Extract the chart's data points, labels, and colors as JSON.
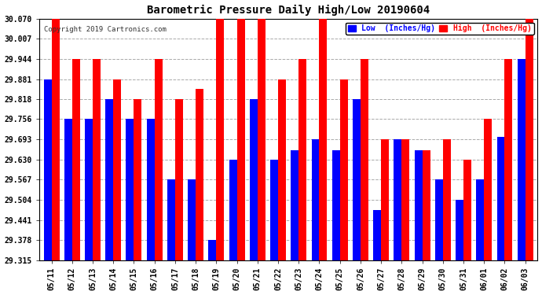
{
  "title": "Barometric Pressure Daily High/Low 20190604",
  "copyright": "Copyright 2019 Cartronics.com",
  "background_color": "#ffffff",
  "bar_color_low": "#0000ff",
  "bar_color_high": "#ff0000",
  "legend_low": "Low  (Inches/Hg)",
  "legend_high": "High  (Inches/Hg)",
  "yticks": [
    29.315,
    29.378,
    29.441,
    29.504,
    29.567,
    29.63,
    29.693,
    29.756,
    29.818,
    29.881,
    29.944,
    30.007,
    30.07
  ],
  "ymin": 29.315,
  "ymax": 30.07,
  "dates": [
    "05/11",
    "05/12",
    "05/13",
    "05/14",
    "05/15",
    "05/16",
    "05/17",
    "05/18",
    "05/19",
    "05/20",
    "05/21",
    "05/22",
    "05/23",
    "05/24",
    "05/25",
    "05/26",
    "05/27",
    "05/28",
    "05/29",
    "05/30",
    "05/31",
    "06/01",
    "06/02",
    "06/03"
  ],
  "lows": [
    29.881,
    29.756,
    29.756,
    29.818,
    29.756,
    29.756,
    29.567,
    29.567,
    29.378,
    29.63,
    29.818,
    29.63,
    29.66,
    29.693,
    29.66,
    29.818,
    29.473,
    29.693,
    29.66,
    29.567,
    29.504,
    29.567,
    29.7,
    29.944
  ],
  "highs": [
    30.07,
    29.944,
    29.944,
    29.881,
    29.818,
    29.944,
    29.818,
    29.85,
    30.07,
    30.07,
    30.07,
    29.881,
    29.944,
    30.07,
    29.881,
    29.944,
    29.693,
    29.693,
    29.66,
    29.693,
    29.63,
    29.756,
    29.944,
    30.07
  ]
}
